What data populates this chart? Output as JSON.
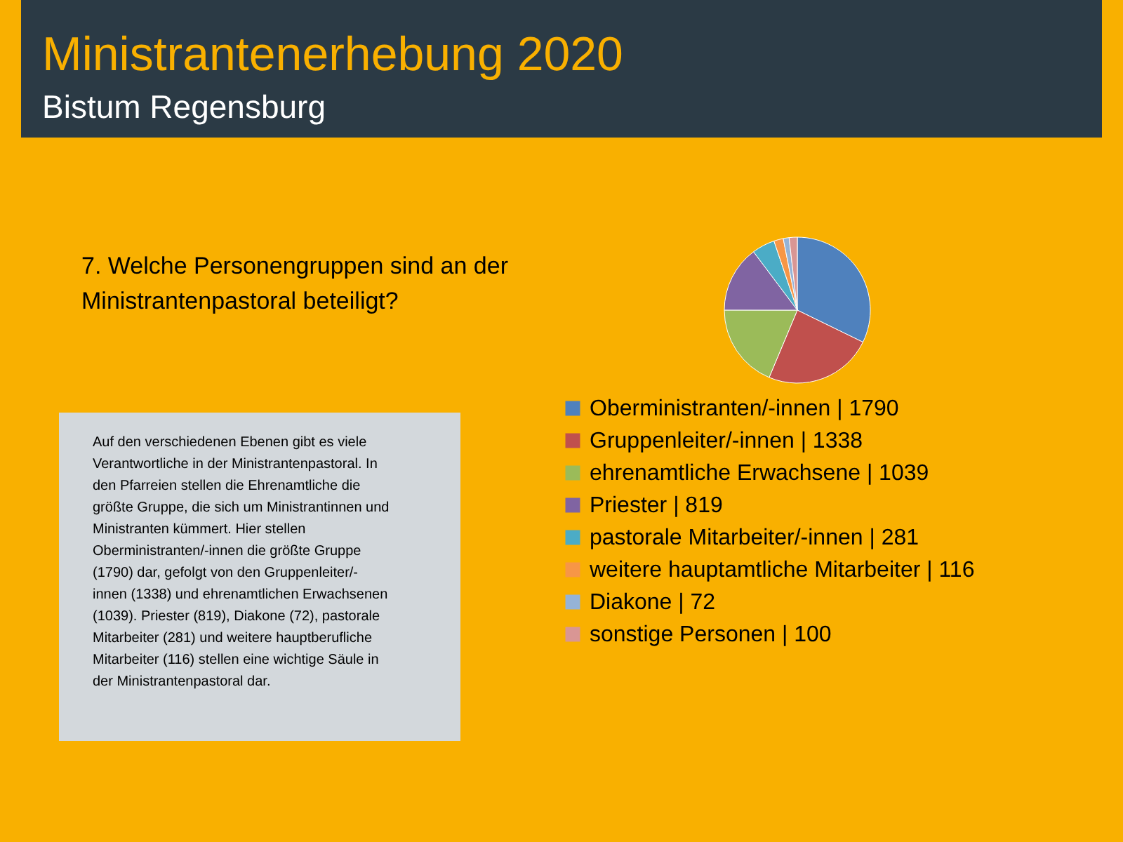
{
  "chart_data": {
    "type": "pie",
    "title": "Ministrantenerhebung 2020",
    "subtitle": "Bistum Regensburg",
    "categories": [
      "Oberministranten/-innen | 1790",
      "Gruppenleiter/-innen | 1338",
      "ehrenamtliche Erwachsene | 1039",
      "Priester | 819",
      "pastorale Mitarbeiter/-innen | 281",
      "weitere hauptamtliche Mitarbeiter | 116",
      "Diakone | 72",
      "sonstige Personen  | 100"
    ],
    "values": [
      1790,
      1338,
      1039,
      819,
      281,
      116,
      72,
      100
    ],
    "colors": [
      "#4f81bd",
      "#c0504d",
      "#9bbb59",
      "#8064a2",
      "#4bacc6",
      "#f79646",
      "#95b3d7",
      "#d99694"
    ],
    "legend": "bottom",
    "annotations": [
      "7. Welche Personengruppen sind an der\nMinistrantenpastoral beteiligt?",
      "Auf den verschiedenen Ebenen gibt es viele\nVerantwortliche in der Ministrantenpastoral. In\nden Pfarreien stellen die Ehrenamtliche die\ngrößte Gruppe,  die sich um Ministrantinnen und\nMinistranten kümmert.  Hier stellen\nOberministranten/-innen die größte Gruppe\n(1790) dar, gefolgt von den Gruppenleiter/-\ninnen (1338) und ehrenamtlichen Erwachsenen\n(1039). Priester (819), Diakone (72), pastorale\nMitarbeiter (281) und weitere hauptberufliche\nMitarbeiter (116) stellen eine wichtige Säule in\nder Ministrantenpastoral dar."
    ]
  }
}
